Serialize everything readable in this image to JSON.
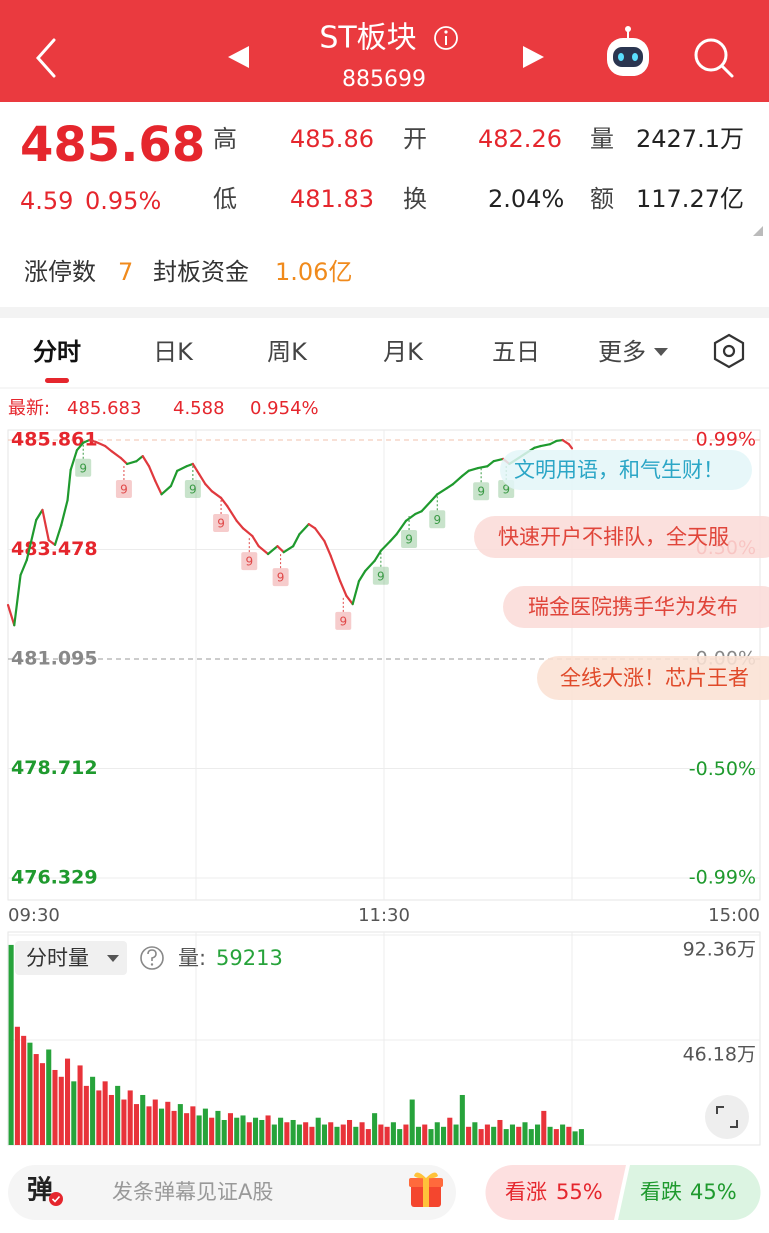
{
  "header": {
    "title": "ST板块",
    "code": "885699"
  },
  "quote": {
    "price": "485.68",
    "change": "4.59",
    "change_pct": "0.95%",
    "fields": [
      {
        "label": "高",
        "value": "485.86"
      },
      {
        "label": "开",
        "value": "482.26"
      },
      {
        "label": "量",
        "value": "2427.1万"
      },
      {
        "label": "低",
        "value": "481.83"
      },
      {
        "label": "换",
        "value": "2.04%"
      },
      {
        "label": "额",
        "value": "117.27亿"
      }
    ]
  },
  "limit_up": {
    "count_label": "涨停数",
    "count": "7",
    "fund_label": "封板资金",
    "fund": "1.06亿"
  },
  "tabs": [
    "分时",
    "日K",
    "周K",
    "月K",
    "五日",
    "更多"
  ],
  "latest": {
    "label": "最新:",
    "price": "485.683",
    "change": "4.588",
    "change_pct": "0.954%"
  },
  "danmaku": [
    "文明用语，和气生财！",
    "快速开户不排队，全天服",
    "瑞金医院携手华为发布",
    "全线大涨！芯片王者"
  ],
  "chart_data": [
    {
      "type": "line",
      "x": [
        0,
        2,
        4,
        6,
        9,
        11,
        13,
        15,
        17,
        19,
        20,
        22,
        24,
        26,
        28,
        31,
        33,
        36,
        38,
        41,
        43,
        45,
        47,
        49,
        52,
        54,
        57,
        59,
        61,
        63,
        65,
        68,
        70,
        73,
        75,
        78,
        80,
        83,
        86,
        88,
        91,
        93,
        96,
        98,
        101,
        103,
        106,
        108,
        110,
        112,
        114,
        117,
        119,
        122,
        124,
        127,
        130,
        132,
        135,
        137,
        140,
        142,
        145,
        147,
        150,
        153,
        155,
        158,
        160,
        163,
        165,
        168,
        170,
        173,
        175,
        177,
        179,
        180
      ],
      "values": [
        482.27,
        481.83,
        482.92,
        483.25,
        484.12,
        484.34,
        483.68,
        483.58,
        484.01,
        484.55,
        485.21,
        485.64,
        485.8,
        485.86,
        485.82,
        485.73,
        485.62,
        485.47,
        485.34,
        485.4,
        485.51,
        485.29,
        484.97,
        484.68,
        484.86,
        485.19,
        485.29,
        485.34,
        485.12,
        484.9,
        484.75,
        484.6,
        484.42,
        484.1,
        483.94,
        483.77,
        483.55,
        483.38,
        483.55,
        483.42,
        483.55,
        483.81,
        484.03,
        483.94,
        483.66,
        483.34,
        482.79,
        482.47,
        482.29,
        482.79,
        483.01,
        483.23,
        483.45,
        483.66,
        483.81,
        484.1,
        484.25,
        484.31,
        484.53,
        484.68,
        484.81,
        484.9,
        485.08,
        485.19,
        485.25,
        485.29,
        485.4,
        485.45,
        485.34,
        485.47,
        485.56,
        485.69,
        485.73,
        485.77,
        485.84,
        485.86,
        485.77,
        485.68
      ],
      "colors": {
        "up": "#1f9a2e",
        "down": "#e0393e",
        "flat": "#222222"
      },
      "xlim": [
        0,
        240
      ],
      "xticks": [
        {
          "value": 0,
          "label": "09:30"
        },
        {
          "value": 120,
          "label": "11:30"
        },
        {
          "value": 240,
          "label": "15:00"
        }
      ],
      "ylim": [
        476.329,
        485.861
      ],
      "yticks": [
        476.329,
        478.712,
        481.095,
        483.478,
        485.861
      ],
      "y2lim": [
        -0.99,
        0.99
      ],
      "y2ticks": [
        {
          "value": -0.99,
          "label": "-0.99%"
        },
        {
          "value": -0.5,
          "label": "-0.50%"
        },
        {
          "value": 0,
          "label": "0.00%"
        },
        {
          "value": 0.5,
          "label": "0.50%"
        },
        {
          "value": 0.99,
          "label": "0.99%"
        }
      ],
      "grid": true,
      "signals": [
        {
          "x": 24,
          "label": "9",
          "color": "#3a9a45"
        },
        {
          "x": 37,
          "label": "9",
          "color": "#e04848"
        },
        {
          "x": 59,
          "label": "9",
          "color": "#3a9a45"
        },
        {
          "x": 68,
          "label": "9",
          "color": "#e04848"
        },
        {
          "x": 77,
          "label": "9",
          "color": "#e04848"
        },
        {
          "x": 87,
          "label": "9",
          "color": "#e04848"
        },
        {
          "x": 107,
          "label": "9",
          "color": "#e04848"
        },
        {
          "x": 119,
          "label": "9",
          "color": "#3a9a45"
        },
        {
          "x": 128,
          "label": "9",
          "color": "#3a9a45"
        },
        {
          "x": 137,
          "label": "9",
          "color": "#3a9a45"
        },
        {
          "x": 151,
          "label": "9",
          "color": "#3a9a45"
        },
        {
          "x": 159,
          "label": "9",
          "color": "#3a9a45"
        }
      ]
    },
    {
      "type": "bar",
      "title": "分时量",
      "value_label": "量:",
      "value": "59213",
      "values": [
        88,
        52,
        48,
        45,
        40,
        36,
        42,
        33,
        30,
        38,
        28,
        35,
        26,
        30,
        24,
        28,
        22,
        26,
        20,
        24,
        18,
        22,
        17,
        20,
        16,
        19,
        15,
        18,
        14,
        17,
        13,
        16,
        12,
        15,
        11,
        14,
        12,
        13,
        10,
        12,
        11,
        13,
        9,
        12,
        10,
        11,
        9,
        10,
        8,
        12,
        9,
        10,
        8,
        9,
        11,
        8,
        10,
        7,
        14,
        9,
        8,
        10,
        7,
        9,
        20,
        8,
        9,
        7,
        10,
        8,
        12,
        9,
        22,
        8,
        10,
        7,
        9,
        8,
        11,
        7,
        9,
        8,
        10,
        7,
        9,
        15,
        8,
        7,
        9,
        8,
        6,
        7
      ],
      "colors": [
        "#27a33b",
        "#e8333a",
        "#e8333a",
        "#27a33b",
        "#e8333a",
        "#e8333a",
        "#27a33b",
        "#e8333a",
        "#e8333a",
        "#e8333a",
        "#27a33b",
        "#e8333a",
        "#e8333a",
        "#27a33b",
        "#e8333a",
        "#e8333a",
        "#e8333a",
        "#27a33b",
        "#e8333a",
        "#e8333a",
        "#e8333a",
        "#27a33b",
        "#e8333a",
        "#e8333a",
        "#27a33b",
        "#e8333a",
        "#e8333a",
        "#27a33b",
        "#e8333a",
        "#e8333a",
        "#27a33b",
        "#27a33b",
        "#e8333a",
        "#27a33b",
        "#27a33b",
        "#e8333a",
        "#27a33b",
        "#27a33b",
        "#e8333a",
        "#27a33b",
        "#27a33b",
        "#e8333a",
        "#27a33b",
        "#27a33b",
        "#e8333a",
        "#27a33b",
        "#27a33b",
        "#e8333a",
        "#e8333a",
        "#27a33b",
        "#27a33b",
        "#e8333a",
        "#27a33b",
        "#e8333a",
        "#e8333a",
        "#27a33b",
        "#e8333a",
        "#e8333a",
        "#27a33b",
        "#e8333a",
        "#e8333a",
        "#27a33b",
        "#27a33b",
        "#e8333a",
        "#27a33b",
        "#27a33b",
        "#e8333a",
        "#27a33b",
        "#27a33b",
        "#27a33b",
        "#e8333a",
        "#27a33b",
        "#27a33b",
        "#e8333a",
        "#27a33b",
        "#e8333a",
        "#e8333a",
        "#27a33b",
        "#e8333a",
        "#27a33b",
        "#27a33b",
        "#e8333a",
        "#27a33b",
        "#27a33b",
        "#27a33b",
        "#e8333a",
        "#27a33b",
        "#e8333a",
        "#27a33b",
        "#e8333a",
        "#27a33b",
        "#27a33b"
      ],
      "ylim": [
        0,
        92.36
      ],
      "yticks": [
        {
          "value": 46.18,
          "label": "46.18万"
        },
        {
          "value": 92.36,
          "label": "92.36万"
        }
      ]
    }
  ],
  "input": {
    "icon": "弹",
    "placeholder": "发条弹幕见证A股"
  },
  "vote": {
    "bull_label": "看涨",
    "bull_pct": "55%",
    "bear_label": "看跌",
    "bear_pct": "45%"
  }
}
